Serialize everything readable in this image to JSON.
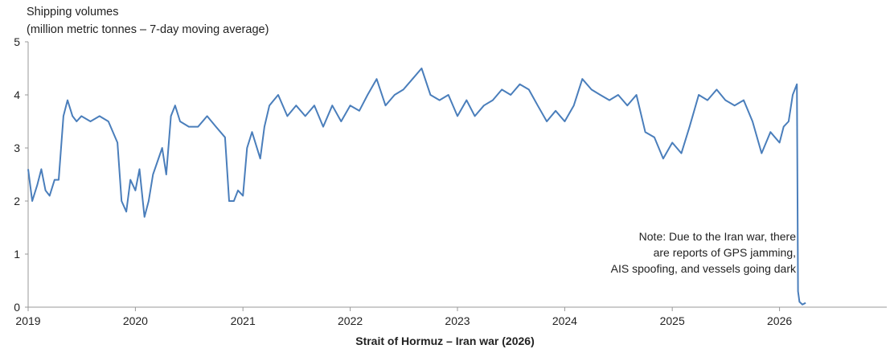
{
  "chart_data": {
    "type": "line",
    "ylabel_line1": "Shipping volumes",
    "ylabel_line2": "(million metric tonnes – 7-day moving average)",
    "xlabel": "Strait of Hormuz – Iran war (2026)",
    "ylim": [
      0,
      5
    ],
    "xlim": [
      "2019-01-01",
      "2026-12-31"
    ],
    "y_ticks": [
      "0",
      "1",
      "2",
      "3",
      "4",
      "5"
    ],
    "x_ticks": [
      "2019",
      "2020",
      "2021",
      "2022",
      "2023",
      "2024",
      "2025",
      "2026"
    ],
    "grid": false,
    "series": [
      {
        "color": "#4a7ebb",
        "points": [
          [
            "2019-01-01",
            2.6
          ],
          [
            "2019-01-15",
            2.0
          ],
          [
            "2019-02-01",
            2.3
          ],
          [
            "2019-02-15",
            2.6
          ],
          [
            "2019-03-01",
            2.2
          ],
          [
            "2019-03-15",
            2.1
          ],
          [
            "2019-04-01",
            2.4
          ],
          [
            "2019-04-15",
            2.4
          ],
          [
            "2019-05-01",
            3.6
          ],
          [
            "2019-05-15",
            3.9
          ],
          [
            "2019-06-01",
            3.6
          ],
          [
            "2019-06-15",
            3.5
          ],
          [
            "2019-07-01",
            3.6
          ],
          [
            "2019-08-01",
            3.5
          ],
          [
            "2019-09-01",
            3.6
          ],
          [
            "2019-10-01",
            3.5
          ],
          [
            "2019-11-01",
            3.1
          ],
          [
            "2019-11-15",
            2.0
          ],
          [
            "2019-12-01",
            1.8
          ],
          [
            "2019-12-15",
            2.4
          ],
          [
            "2020-01-01",
            2.2
          ],
          [
            "2020-01-15",
            2.6
          ],
          [
            "2020-02-01",
            1.7
          ],
          [
            "2020-02-15",
            2.0
          ],
          [
            "2020-03-01",
            2.5
          ],
          [
            "2020-04-01",
            3.0
          ],
          [
            "2020-04-15",
            2.5
          ],
          [
            "2020-05-01",
            3.6
          ],
          [
            "2020-05-15",
            3.8
          ],
          [
            "2020-06-01",
            3.5
          ],
          [
            "2020-07-01",
            3.4
          ],
          [
            "2020-08-01",
            3.4
          ],
          [
            "2020-09-01",
            3.6
          ],
          [
            "2020-10-01",
            3.4
          ],
          [
            "2020-11-01",
            3.2
          ],
          [
            "2020-11-15",
            2.0
          ],
          [
            "2020-12-01",
            2.0
          ],
          [
            "2020-12-15",
            2.2
          ],
          [
            "2021-01-01",
            2.1
          ],
          [
            "2021-01-15",
            3.0
          ],
          [
            "2021-02-01",
            3.3
          ],
          [
            "2021-03-01",
            2.8
          ],
          [
            "2021-03-15",
            3.4
          ],
          [
            "2021-04-01",
            3.8
          ],
          [
            "2021-05-01",
            4.0
          ],
          [
            "2021-06-01",
            3.6
          ],
          [
            "2021-07-01",
            3.8
          ],
          [
            "2021-08-01",
            3.6
          ],
          [
            "2021-09-01",
            3.8
          ],
          [
            "2021-10-01",
            3.4
          ],
          [
            "2021-11-01",
            3.8
          ],
          [
            "2021-12-01",
            3.5
          ],
          [
            "2022-01-01",
            3.8
          ],
          [
            "2022-02-01",
            3.7
          ],
          [
            "2022-03-01",
            4.0
          ],
          [
            "2022-04-01",
            4.3
          ],
          [
            "2022-05-01",
            3.8
          ],
          [
            "2022-06-01",
            4.0
          ],
          [
            "2022-07-01",
            4.1
          ],
          [
            "2022-08-01",
            4.3
          ],
          [
            "2022-09-01",
            4.5
          ],
          [
            "2022-10-01",
            4.0
          ],
          [
            "2022-11-01",
            3.9
          ],
          [
            "2022-12-01",
            4.0
          ],
          [
            "2023-01-01",
            3.6
          ],
          [
            "2023-02-01",
            3.9
          ],
          [
            "2023-03-01",
            3.6
          ],
          [
            "2023-04-01",
            3.8
          ],
          [
            "2023-05-01",
            3.9
          ],
          [
            "2023-06-01",
            4.1
          ],
          [
            "2023-07-01",
            4.0
          ],
          [
            "2023-08-01",
            4.2
          ],
          [
            "2023-09-01",
            4.1
          ],
          [
            "2023-10-01",
            3.8
          ],
          [
            "2023-11-01",
            3.5
          ],
          [
            "2023-12-01",
            3.7
          ],
          [
            "2024-01-01",
            3.5
          ],
          [
            "2024-02-01",
            3.8
          ],
          [
            "2024-03-01",
            4.3
          ],
          [
            "2024-04-01",
            4.1
          ],
          [
            "2024-05-01",
            4.0
          ],
          [
            "2024-06-01",
            3.9
          ],
          [
            "2024-07-01",
            4.0
          ],
          [
            "2024-08-01",
            3.8
          ],
          [
            "2024-09-01",
            4.0
          ],
          [
            "2024-10-01",
            3.3
          ],
          [
            "2024-11-01",
            3.2
          ],
          [
            "2024-12-01",
            2.8
          ],
          [
            "2025-01-01",
            3.1
          ],
          [
            "2025-02-01",
            2.9
          ],
          [
            "2025-03-01",
            3.4
          ],
          [
            "2025-04-01",
            4.0
          ],
          [
            "2025-05-01",
            3.9
          ],
          [
            "2025-06-01",
            4.1
          ],
          [
            "2025-07-01",
            3.9
          ],
          [
            "2025-08-01",
            3.8
          ],
          [
            "2025-09-01",
            3.9
          ],
          [
            "2025-10-01",
            3.5
          ],
          [
            "2025-11-01",
            2.9
          ],
          [
            "2025-12-01",
            3.3
          ],
          [
            "2026-01-01",
            3.1
          ],
          [
            "2026-01-15",
            3.4
          ],
          [
            "2026-02-01",
            3.5
          ],
          [
            "2026-02-15",
            4.0
          ],
          [
            "2026-03-01",
            4.2
          ],
          [
            "2026-03-05",
            0.3
          ],
          [
            "2026-03-10",
            0.1
          ],
          [
            "2026-03-20",
            0.05
          ],
          [
            "2026-03-31",
            0.08
          ]
        ]
      }
    ]
  },
  "annotation": {
    "line1": "Note: Due to the Iran war, there",
    "line2": "are reports of GPS jamming,",
    "line3": "AIS spoofing, and vessels going dark"
  }
}
